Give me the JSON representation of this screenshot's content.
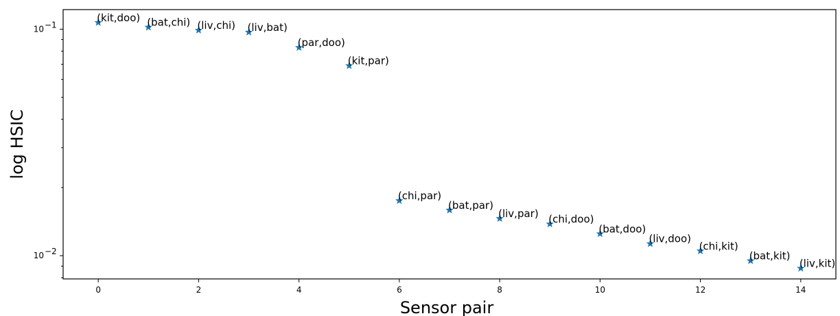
{
  "chart_data": {
    "type": "scatter",
    "title": "",
    "xlabel": "Sensor pair",
    "ylabel": "log HSIC",
    "yscale": "log",
    "xlim": [
      -0.7,
      14.7
    ],
    "ylim": [
      0.0079,
      0.122
    ],
    "xticks": [
      0,
      2,
      4,
      6,
      8,
      10,
      12,
      14
    ],
    "xtick_labels": [
      "0",
      "2",
      "4",
      "6",
      "8",
      "10",
      "12",
      "14"
    ],
    "yticks": [
      {
        "value": 0.1,
        "base": "10",
        "exp": "−1"
      },
      {
        "value": 0.01,
        "base": "10",
        "exp": "−2"
      }
    ],
    "grid": false,
    "marker": "star",
    "marker_color": "#1f77b4",
    "points": [
      {
        "x": 0,
        "y": 0.107,
        "label": "(kit,doo)"
      },
      {
        "x": 1,
        "y": 0.102,
        "label": "(bat,chi)"
      },
      {
        "x": 2,
        "y": 0.099,
        "label": "(liv,chi)"
      },
      {
        "x": 3,
        "y": 0.097,
        "label": "(liv,bat)"
      },
      {
        "x": 4,
        "y": 0.083,
        "label": "(par,doo)"
      },
      {
        "x": 5,
        "y": 0.069,
        "label": "(kit,par)"
      },
      {
        "x": 6,
        "y": 0.0175,
        "label": "(chi,par)"
      },
      {
        "x": 7,
        "y": 0.0159,
        "label": "(bat,par)"
      },
      {
        "x": 8,
        "y": 0.0146,
        "label": "(liv,par)"
      },
      {
        "x": 9,
        "y": 0.0138,
        "label": "(chi,doo)"
      },
      {
        "x": 10,
        "y": 0.0125,
        "label": "(bat,doo)"
      },
      {
        "x": 11,
        "y": 0.0113,
        "label": "(liv,doo)"
      },
      {
        "x": 12,
        "y": 0.0105,
        "label": "(chi,kit)"
      },
      {
        "x": 13,
        "y": 0.0095,
        "label": "(bat,kit)"
      },
      {
        "x": 14,
        "y": 0.0088,
        "label": "(liv,kit)"
      }
    ]
  }
}
